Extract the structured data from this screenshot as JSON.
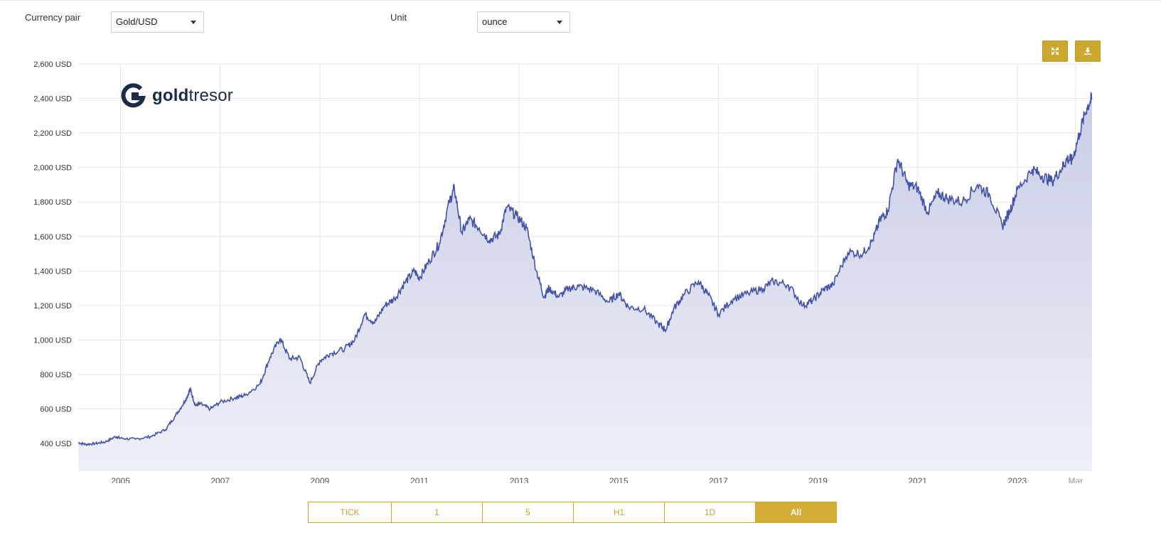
{
  "controls": {
    "currency_pair_label": "Currency pair",
    "currency_pair_value": "Gold/USD",
    "unit_label": "Unit",
    "unit_value": "ounce"
  },
  "toolbar": {
    "fullscreen_icon": "expand-icon",
    "download_icon": "download-icon"
  },
  "logo": {
    "bold": "gold",
    "light": "tresor",
    "icon": "goldtresor-logo-icon"
  },
  "range_buttons": [
    {
      "label": "TICK",
      "active": false
    },
    {
      "label": "1",
      "active": false
    },
    {
      "label": "5",
      "active": false
    },
    {
      "label": "H1",
      "active": false
    },
    {
      "label": "1D",
      "active": false
    },
    {
      "label": "All",
      "active": true
    }
  ],
  "colors": {
    "line": "#4452a8",
    "area_top": "#c9cde6",
    "area_bottom": "#eef0f8",
    "accent": "#d4ad36"
  },
  "chart_data": {
    "type": "area",
    "title": "",
    "xlabel": "",
    "ylabel": "",
    "x_ticks": [
      "2005",
      "2007",
      "2009",
      "2011",
      "2013",
      "2015",
      "2017",
      "2019",
      "2021",
      "2023",
      "Mar"
    ],
    "y_ticks": [
      "400 USD",
      "600 USD",
      "800 USD",
      "1,000 USD",
      "1,200 USD",
      "1,400 USD",
      "1,600 USD",
      "1,800 USD",
      "2,000 USD",
      "2,200 USD",
      "2,400 USD",
      "2,600 USD"
    ],
    "ylim": [
      240,
      2600
    ],
    "xlim": [
      2004.15,
      2024.5
    ],
    "grid": true,
    "legend": "none",
    "series": [
      {
        "x": [
          2004.15,
          2004.3,
          2004.5,
          2004.7,
          2004.9,
          2005.0,
          2005.3,
          2005.6,
          2005.9,
          2006.1,
          2006.3,
          2006.4,
          2006.5,
          2006.6,
          2006.8,
          2007.0,
          2007.3,
          2007.5,
          2007.8,
          2008.0,
          2008.2,
          2008.4,
          2008.6,
          2008.8,
          2009.0,
          2009.2,
          2009.5,
          2009.7,
          2009.9,
          2010.1,
          2010.3,
          2010.5,
          2010.7,
          2010.9,
          2011.0,
          2011.2,
          2011.4,
          2011.6,
          2011.7,
          2011.85,
          2012.0,
          2012.2,
          2012.4,
          2012.6,
          2012.75,
          2012.95,
          2013.15,
          2013.35,
          2013.5,
          2013.6,
          2013.8,
          2014.0,
          2014.2,
          2014.5,
          2014.8,
          2015.0,
          2015.2,
          2015.5,
          2015.8,
          2015.95,
          2016.1,
          2016.3,
          2016.6,
          2016.8,
          2017.0,
          2017.3,
          2017.6,
          2017.9,
          2018.1,
          2018.4,
          2018.7,
          2018.9,
          2019.1,
          2019.3,
          2019.6,
          2019.9,
          2020.1,
          2020.25,
          2020.4,
          2020.6,
          2020.8,
          2021.0,
          2021.2,
          2021.4,
          2021.6,
          2021.9,
          2022.2,
          2022.45,
          2022.7,
          2022.85,
          2023.0,
          2023.3,
          2023.5,
          2023.7,
          2023.9,
          2024.0,
          2024.1,
          2024.25,
          2024.4,
          2024.5
        ],
        "y": [
          405,
          395,
          400,
          410,
          440,
          430,
          425,
          440,
          480,
          560,
          650,
          715,
          620,
          630,
          600,
          640,
          665,
          680,
          745,
          900,
          1010,
          890,
          900,
          750,
          880,
          920,
          950,
          1000,
          1150,
          1100,
          1200,
          1240,
          1330,
          1400,
          1360,
          1460,
          1560,
          1800,
          1880,
          1620,
          1700,
          1650,
          1580,
          1610,
          1770,
          1720,
          1650,
          1400,
          1250,
          1300,
          1250,
          1300,
          1310,
          1290,
          1220,
          1270,
          1190,
          1180,
          1090,
          1060,
          1180,
          1260,
          1340,
          1260,
          1150,
          1240,
          1270,
          1300,
          1340,
          1320,
          1200,
          1230,
          1290,
          1320,
          1510,
          1500,
          1580,
          1700,
          1750,
          2050,
          1900,
          1880,
          1740,
          1850,
          1820,
          1800,
          1900,
          1840,
          1660,
          1750,
          1870,
          1990,
          1950,
          1920,
          2000,
          2050,
          2040,
          2200,
          2350,
          2400
        ]
      }
    ]
  }
}
